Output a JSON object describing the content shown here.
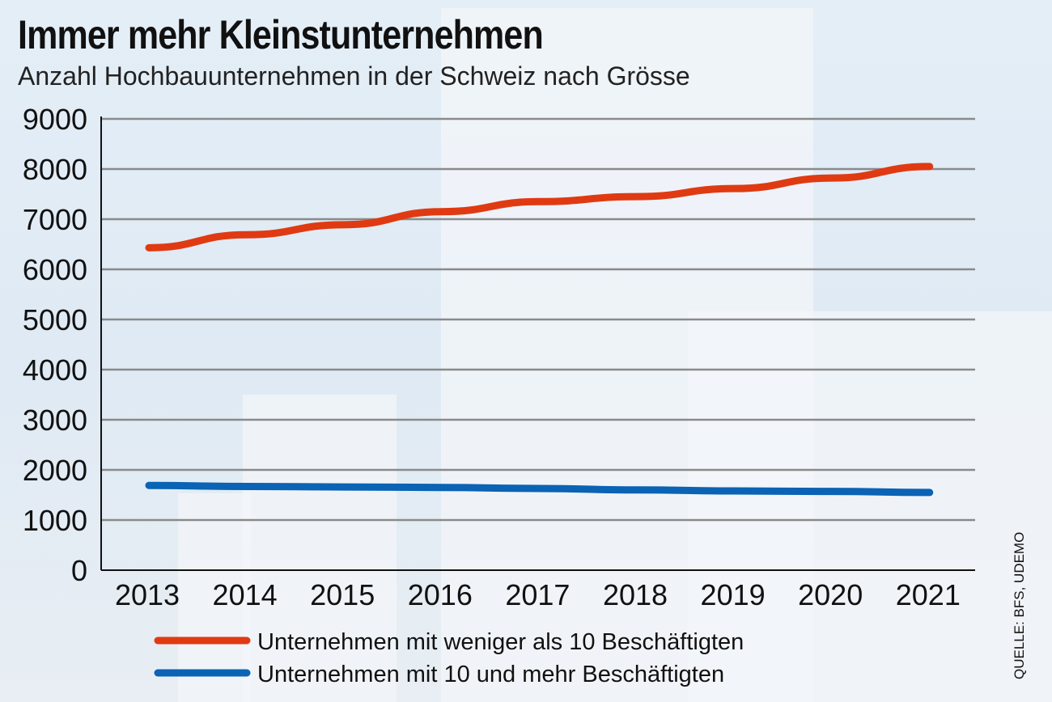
{
  "chart_data": {
    "type": "line",
    "title": "Immer mehr Kleinstunternehmen",
    "subtitle": "Anzahl Hochbauunternehmen in der Schweiz nach Grösse",
    "categories": [
      "2013",
      "2014",
      "2015",
      "2016",
      "2017",
      "2018",
      "2019",
      "2020",
      "2021"
    ],
    "yticks": [
      "0",
      "1000",
      "2000",
      "3000",
      "4000",
      "5000",
      "6000",
      "7000",
      "8000",
      "9000"
    ],
    "ylim": [
      0,
      9000
    ],
    "grid": true,
    "legend_position": "bottom-left",
    "series": [
      {
        "name": "Unternehmen mit weniger als 10 Beschäftigten",
        "color": "#e03a12",
        "values": [
          6430,
          6690,
          6890,
          7150,
          7350,
          7450,
          7610,
          7820,
          8050
        ]
      },
      {
        "name": "Unternehmen mit 10 und mehr Beschäftigten",
        "color": "#0a63b4",
        "values": [
          1690,
          1670,
          1660,
          1650,
          1630,
          1600,
          1580,
          1570,
          1550
        ]
      }
    ],
    "source": "QUELLE: BFS, UDEMO"
  }
}
